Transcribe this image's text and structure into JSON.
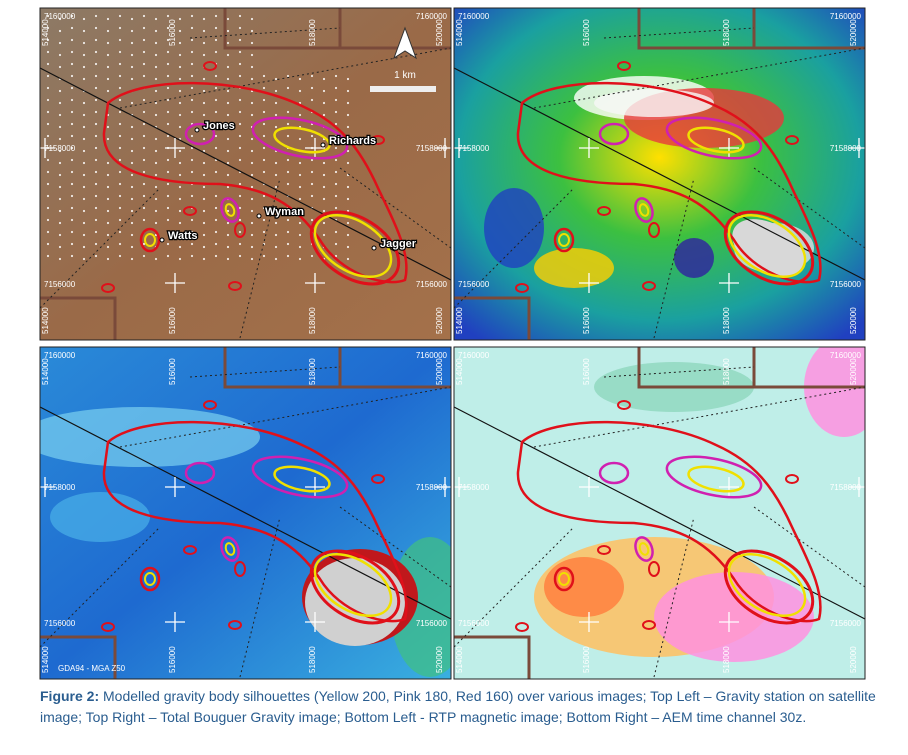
{
  "labels": {
    "bodies": [
      "Jones",
      "Richards",
      "Wyman",
      "Watts",
      "Jagger"
    ],
    "scale": "1 km",
    "datum": "GDA94 - MGA Z50"
  },
  "grid": {
    "northings": [
      "7160000",
      "7158000",
      "7156000"
    ],
    "eastings": [
      "514000",
      "516000",
      "518000",
      "520000"
    ]
  },
  "caption": {
    "label": "Figure 2:",
    "text": "Modelled gravity body silhouettes (Yellow 200, Pink 180, Red 160) over various images; Top Left – Gravity station on satellite image;  Top Right – Total Bouguer Gravity image; Bottom Left -  RTP magnetic image; Bottom Right – AEM time channel 30z."
  }
}
